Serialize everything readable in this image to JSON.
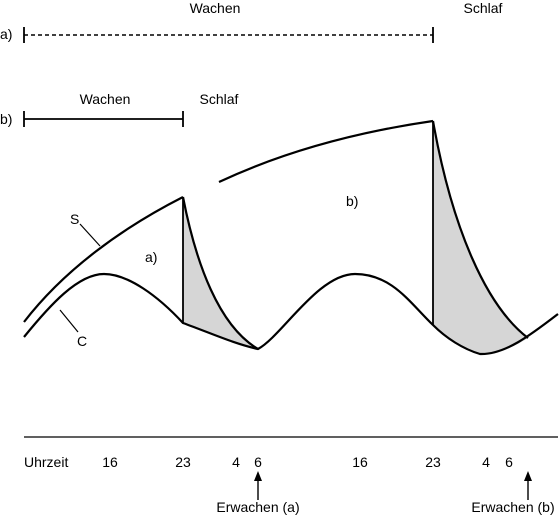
{
  "row_a": {
    "marker": "a)",
    "wake_label": "Wachen",
    "sleep_label": "Schlaf"
  },
  "row_b": {
    "marker": "b)",
    "wake_label": "Wachen",
    "sleep_label": "Schlaf"
  },
  "curves": {
    "s_label": "S",
    "c_label": "C",
    "region_a_label": "a)",
    "region_b_label": "b)"
  },
  "axis": {
    "title": "Uhrzeit",
    "ticks": [
      "16",
      "23",
      "4",
      "6",
      "16",
      "23",
      "4",
      "6"
    ]
  },
  "wake_markers": [
    {
      "label": "Erwachen (a)"
    },
    {
      "label": "Erwachen (b)"
    }
  ],
  "colors": {
    "shade": "#d6d6d6",
    "line": "#000000"
  }
}
